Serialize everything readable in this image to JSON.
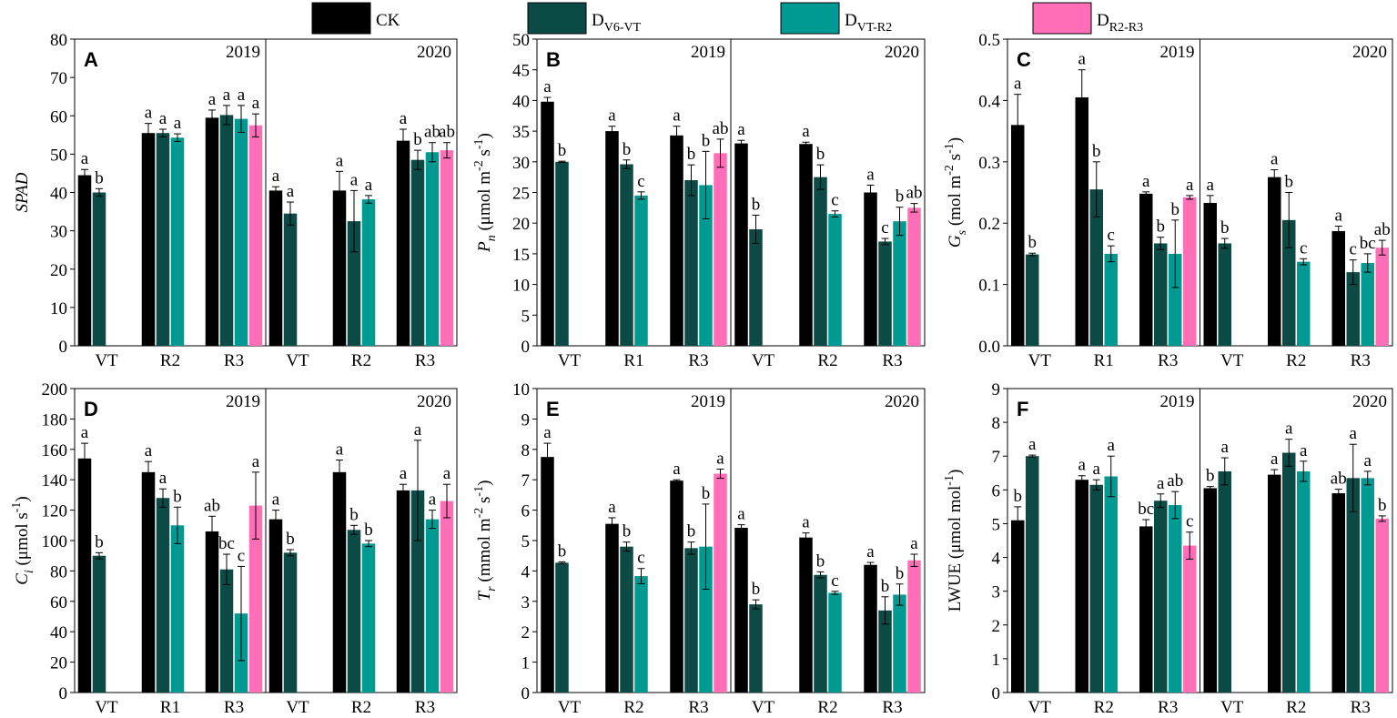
{
  "legend": [
    {
      "color": "#000000",
      "label": [
        {
          "text": "CK"
        }
      ]
    },
    {
      "color": "#0b4a45",
      "label": [
        {
          "text": "D"
        },
        {
          "text": "V6-VT",
          "style": "sub"
        }
      ]
    },
    {
      "color": "#009a92",
      "label": [
        {
          "text": "D"
        },
        {
          "text": "VT-R2",
          "style": "sub"
        }
      ]
    },
    {
      "color": "#ff6eb7",
      "label": [
        {
          "text": "D"
        },
        {
          "text": "R2-R3",
          "style": "sub"
        }
      ]
    }
  ],
  "chart_data": [
    {
      "type": "bar",
      "panel": "A",
      "years": [
        "2019",
        "2020"
      ],
      "ylabel": [
        {
          "text": "SPAD",
          "style": "italic"
        }
      ],
      "ylim": [
        0,
        80
      ],
      "yticks": [
        0,
        10,
        20,
        30,
        40,
        50,
        60,
        70,
        80
      ],
      "categories": [
        "VT",
        "R2",
        "R3",
        "VT",
        "R2",
        "R3"
      ],
      "series": [
        {
          "values": [
            44.5,
            55.5,
            59.5,
            40.5,
            40.5,
            53.5
          ],
          "errors": [
            1.5,
            2.5,
            2,
            1,
            5,
            3
          ],
          "letters": [
            "a",
            "a",
            "a",
            "a",
            "a",
            "a"
          ]
        },
        {
          "values": [
            40,
            55.5,
            60.2,
            34.5,
            32.5,
            48.5
          ],
          "errors": [
            1,
            1,
            2.5,
            3,
            8,
            2.5
          ],
          "letters": [
            "b",
            "a",
            "a",
            "a",
            "a",
            "b"
          ]
        },
        {
          "values": [
            null,
            54.3,
            59.2,
            null,
            38.2,
            50.5
          ],
          "errors": [
            null,
            1,
            3.5,
            null,
            1,
            2.5
          ],
          "letters": [
            null,
            "a",
            "a",
            null,
            "a",
            "ab"
          ]
        },
        {
          "values": [
            null,
            null,
            57.5,
            null,
            null,
            51
          ],
          "errors": [
            null,
            null,
            3,
            null,
            null,
            2
          ],
          "letters": [
            null,
            null,
            "a",
            null,
            null,
            "ab"
          ]
        }
      ]
    },
    {
      "type": "bar",
      "panel": "B",
      "years": [
        "2019",
        "2020"
      ],
      "ylabel": [
        {
          "text": "P",
          "style": "italic"
        },
        {
          "text": "n",
          "style": "sub-italic"
        },
        {
          "text": " (μmol m"
        },
        {
          "text": "-2",
          "style": "sup"
        },
        {
          "text": " s"
        },
        {
          "text": "-1",
          "style": "sup"
        },
        {
          "text": ")"
        }
      ],
      "ylim": [
        0,
        50
      ],
      "yticks": [
        0,
        5,
        10,
        15,
        20,
        25,
        30,
        35,
        40,
        45,
        50
      ],
      "categories": [
        "VT",
        "R1",
        "R3",
        "VT",
        "R2",
        "R3"
      ],
      "series": [
        {
          "values": [
            39.8,
            35,
            34.3,
            33,
            32.9,
            25
          ],
          "errors": [
            0.7,
            0.8,
            1.5,
            0.5,
            0.3,
            1.2
          ],
          "letters": [
            "a",
            "a",
            "a",
            "a",
            "a",
            "a"
          ]
        },
        {
          "values": [
            30,
            29.6,
            27,
            19,
            27.5,
            17
          ],
          "errors": [
            0.1,
            0.7,
            2.5,
            2.3,
            2,
            0.5
          ],
          "letters": [
            "b",
            "b",
            "b",
            "b",
            "b",
            "c"
          ]
        },
        {
          "values": [
            null,
            24.5,
            26.2,
            null,
            21.5,
            20.3
          ],
          "errors": [
            null,
            0.6,
            5.5,
            null,
            0.5,
            2.3
          ],
          "letters": [
            null,
            "c",
            "b",
            null,
            "c",
            "b"
          ]
        },
        {
          "values": [
            null,
            null,
            31.4,
            null,
            null,
            22.5
          ],
          "errors": [
            null,
            null,
            2.3,
            null,
            null,
            0.7
          ],
          "letters": [
            null,
            null,
            "ab",
            null,
            null,
            "ab"
          ]
        }
      ]
    },
    {
      "type": "bar",
      "panel": "C",
      "years": [
        "2019",
        "2020"
      ],
      "ylabel": [
        {
          "text": "G",
          "style": "italic"
        },
        {
          "text": "s",
          "style": "sub-italic"
        },
        {
          "text": " (mol m"
        },
        {
          "text": "-2",
          "style": "sup"
        },
        {
          "text": " s"
        },
        {
          "text": "-1",
          "style": "sup"
        },
        {
          "text": ")"
        }
      ],
      "ylim": [
        0,
        0.5
      ],
      "yticks": [
        {
          "value": 0,
          "label": "0.0"
        },
        0.1,
        0.2,
        0.3,
        0.4,
        0.5
      ],
      "categories": [
        "VT",
        "R1",
        "R3",
        "VT",
        "R2",
        "R3"
      ],
      "series": [
        {
          "values": [
            0.36,
            0.405,
            0.248,
            0.233,
            0.275,
            0.187
          ],
          "errors": [
            0.05,
            0.045,
            0.003,
            0.012,
            0.012,
            0.008
          ],
          "letters": [
            "a",
            "a",
            "a",
            "a",
            "a",
            "a"
          ]
        },
        {
          "values": [
            0.149,
            0.255,
            0.167,
            0.167,
            0.205,
            0.12
          ],
          "errors": [
            0.002,
            0.045,
            0.01,
            0.008,
            0.045,
            0.02
          ],
          "letters": [
            "b",
            "b",
            "b",
            "b",
            "b",
            "c"
          ]
        },
        {
          "values": [
            null,
            0.15,
            0.15,
            null,
            0.137,
            0.135
          ],
          "errors": [
            null,
            0.013,
            0.055,
            null,
            0.005,
            0.015
          ],
          "letters": [
            null,
            "c",
            "b",
            null,
            "c",
            "bc"
          ]
        },
        {
          "values": [
            null,
            null,
            0.242,
            null,
            null,
            0.16
          ],
          "errors": [
            null,
            null,
            0.003,
            null,
            null,
            0.012
          ],
          "letters": [
            null,
            null,
            "a",
            null,
            null,
            "ab"
          ]
        }
      ]
    },
    {
      "type": "bar",
      "panel": "D",
      "years": [
        "2019",
        "2020"
      ],
      "ylabel": [
        {
          "text": "C",
          "style": "italic"
        },
        {
          "text": "i",
          "style": "sub-italic"
        },
        {
          "text": " (μmol s"
        },
        {
          "text": "-1",
          "style": "sup"
        },
        {
          "text": ")"
        }
      ],
      "ylim": [
        0,
        200
      ],
      "yticks": [
        0,
        20,
        40,
        60,
        80,
        100,
        120,
        140,
        160,
        180,
        200
      ],
      "categories": [
        "VT",
        "R1",
        "R3",
        "VT",
        "R2",
        "R3"
      ],
      "series": [
        {
          "values": [
            154,
            145,
            106,
            114,
            145,
            133
          ],
          "errors": [
            10,
            7,
            10,
            6,
            8,
            4
          ],
          "letters": [
            "a",
            "a",
            "ab",
            "a",
            "a",
            "a"
          ]
        },
        {
          "values": [
            90,
            128,
            81,
            92,
            107,
            133
          ],
          "errors": [
            2,
            6,
            10,
            2,
            3,
            33
          ],
          "letters": [
            "b",
            "a",
            "bc",
            "b",
            "b",
            "a"
          ]
        },
        {
          "values": [
            null,
            110,
            52,
            null,
            98,
            114
          ],
          "errors": [
            null,
            12,
            31,
            null,
            2,
            6
          ],
          "letters": [
            null,
            "b",
            "c",
            null,
            "b",
            "a"
          ]
        },
        {
          "values": [
            null,
            null,
            123,
            null,
            null,
            126
          ],
          "errors": [
            null,
            null,
            22,
            null,
            null,
            11
          ],
          "letters": [
            null,
            null,
            "a",
            null,
            null,
            "a"
          ]
        }
      ]
    },
    {
      "type": "bar",
      "panel": "E",
      "years": [
        "2019",
        "2020"
      ],
      "ylabel": [
        {
          "text": "T",
          "style": "italic"
        },
        {
          "text": "r",
          "style": "sub-italic"
        },
        {
          "text": " (mmol m"
        },
        {
          "text": "-2",
          "style": "sup"
        },
        {
          "text": " s"
        },
        {
          "text": "-1",
          "style": "sup"
        },
        {
          "text": ")"
        }
      ],
      "ylim": [
        0,
        10
      ],
      "yticks": [
        0,
        1,
        2,
        3,
        4,
        5,
        6,
        7,
        8,
        9,
        10
      ],
      "categories": [
        "VT",
        "R2",
        "R3",
        "VT",
        "R2",
        "R3"
      ],
      "series": [
        {
          "values": [
            7.75,
            5.55,
            6.97,
            5.42,
            5.1,
            4.2
          ],
          "errors": [
            0.45,
            0.2,
            0.03,
            0.1,
            0.15,
            0.08
          ],
          "letters": [
            "a",
            "a",
            "a",
            "a",
            "a",
            "a"
          ]
        },
        {
          "values": [
            4.27,
            4.8,
            4.75,
            2.9,
            3.87,
            2.7
          ],
          "errors": [
            0.03,
            0.15,
            0.2,
            0.15,
            0.1,
            0.45
          ],
          "letters": [
            "b",
            "b",
            "b",
            "b",
            "b",
            "b"
          ]
        },
        {
          "values": [
            null,
            3.83,
            4.8,
            null,
            3.28,
            3.22
          ],
          "errors": [
            null,
            0.25,
            1.4,
            null,
            0.05,
            0.35
          ],
          "letters": [
            null,
            "c",
            "b",
            null,
            "c",
            "b"
          ]
        },
        {
          "values": [
            null,
            null,
            7.2,
            null,
            null,
            4.35
          ],
          "errors": [
            null,
            null,
            0.15,
            null,
            null,
            0.2
          ],
          "letters": [
            null,
            null,
            "a",
            null,
            null,
            "a"
          ]
        }
      ]
    },
    {
      "type": "bar",
      "panel": "F",
      "years": [
        "2019",
        "2020"
      ],
      "ylabel": [
        {
          "text": "LWUE (μmol mol"
        },
        {
          "text": "-1",
          "style": "sup"
        },
        {
          "text": ")"
        }
      ],
      "ylim": [
        0,
        9
      ],
      "yticks": [
        0,
        1,
        2,
        3,
        4,
        5,
        6,
        7,
        8,
        9
      ],
      "categories": [
        "VT",
        "R2",
        "R3",
        "VT",
        "R2",
        "R3"
      ],
      "series": [
        {
          "values": [
            5.1,
            6.3,
            4.92,
            6.05,
            6.45,
            5.9
          ],
          "errors": [
            0.4,
            0.12,
            0.2,
            0.05,
            0.15,
            0.12
          ],
          "letters": [
            "b",
            "a",
            "bc",
            "b",
            "a",
            "ab"
          ]
        },
        {
          "values": [
            7,
            6.15,
            5.68,
            6.55,
            7.1,
            6.35
          ],
          "errors": [
            0.03,
            0.15,
            0.2,
            0.4,
            0.4,
            1
          ],
          "letters": [
            "a",
            "a",
            "a",
            "a",
            "a",
            "a"
          ]
        },
        {
          "values": [
            null,
            6.4,
            5.55,
            null,
            6.55,
            6.35
          ],
          "errors": [
            null,
            0.6,
            0.4,
            null,
            0.3,
            0.2
          ],
          "letters": [
            null,
            "a",
            "ab",
            null,
            "a",
            "a"
          ]
        },
        {
          "values": [
            null,
            null,
            4.35,
            null,
            null,
            5.15
          ],
          "errors": [
            null,
            null,
            0.4,
            null,
            null,
            0.08
          ],
          "letters": [
            null,
            null,
            "c",
            null,
            null,
            "b"
          ]
        }
      ]
    }
  ]
}
